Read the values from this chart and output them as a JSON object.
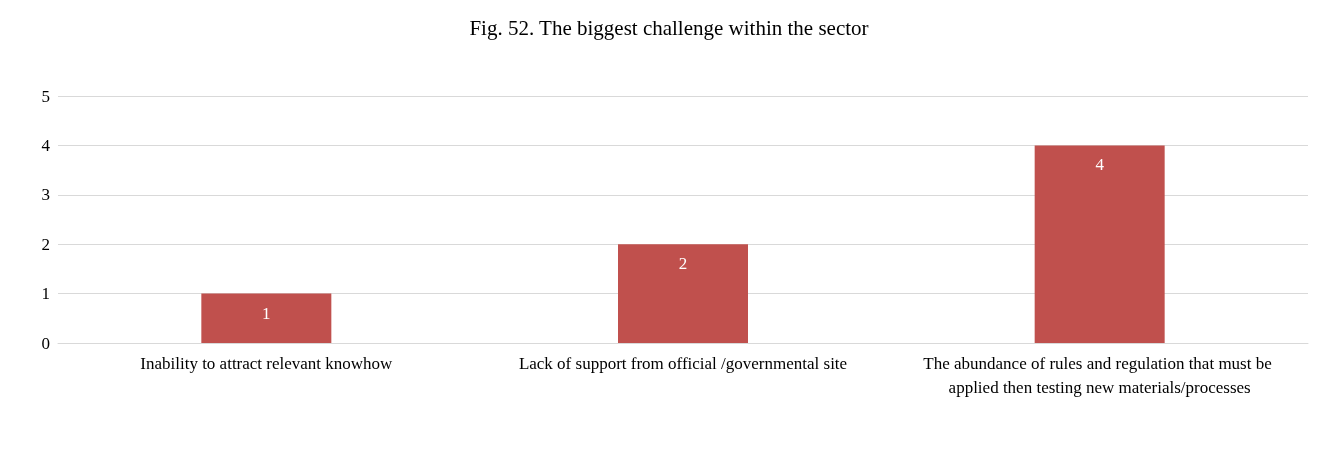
{
  "chart_data": {
    "type": "bar",
    "title": "Fig. 52. The biggest challenge within the sector",
    "categories": [
      "Inability to attract relevant knowhow",
      "Lack of support from official /governmental site",
      "The abundance of rules and regulation that must be applied then testing new materials/processes"
    ],
    "values": [
      1,
      2,
      4
    ],
    "color": "#c0504d",
    "ylim": [
      0,
      5
    ],
    "yticks": [
      0,
      1,
      2,
      3,
      4,
      5
    ],
    "grid": "y",
    "data_labels": true
  }
}
